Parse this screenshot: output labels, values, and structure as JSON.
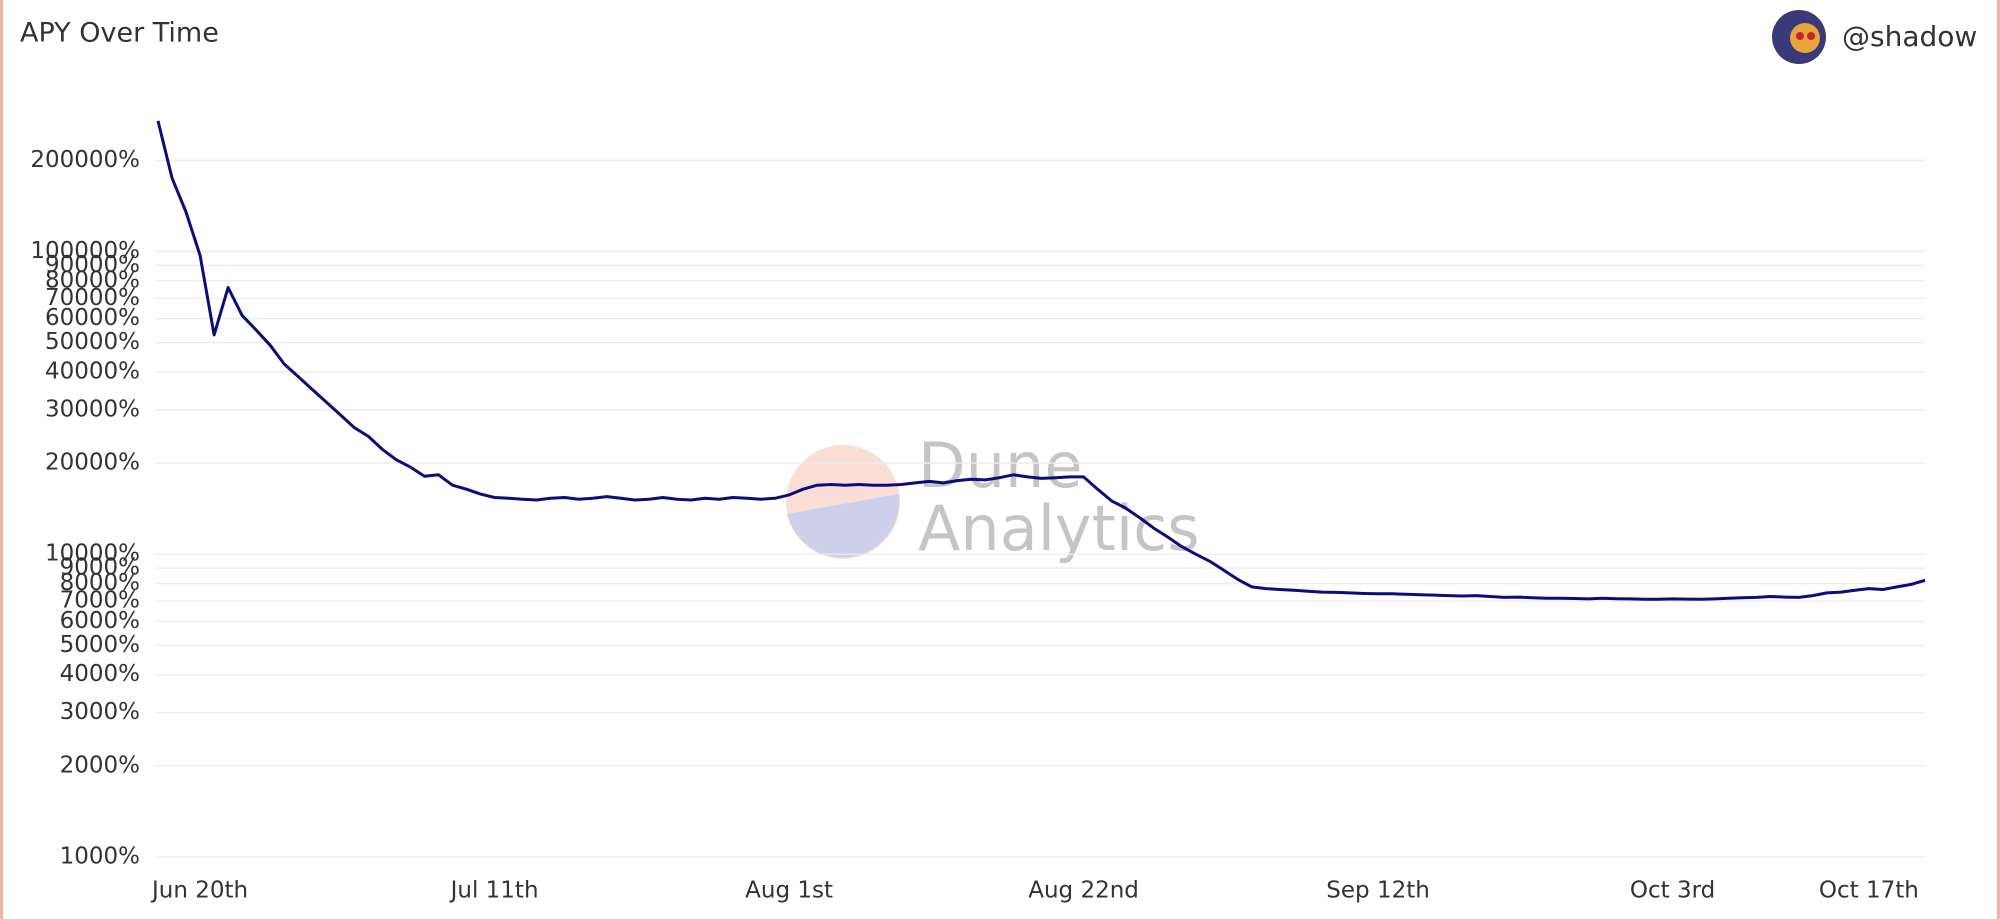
{
  "author": "@shadow",
  "watermark": [
    "Dune",
    "Analytics"
  ],
  "chart_data": {
    "type": "line",
    "title": "APY Over Time",
    "color": "#0d0d7a",
    "y_log_scale": true,
    "grid": true,
    "xlim": [
      "06-17",
      "10-21"
    ],
    "xticks": [
      {
        "value": "06-20",
        "label": "Jun 20th"
      },
      {
        "value": "07-11",
        "label": "Jul 11th"
      },
      {
        "value": "08-01",
        "label": "Aug 1st"
      },
      {
        "value": "08-22",
        "label": "Aug 22nd"
      },
      {
        "value": "09-12",
        "label": "Sep 12th"
      },
      {
        "value": "10-03",
        "label": "Oct 3rd"
      },
      {
        "value": "10-17",
        "label": "Oct 17th"
      }
    ],
    "ylim": [
      1000,
      300000
    ],
    "yticks": [
      {
        "value": 1000,
        "label": "1000%"
      },
      {
        "value": 2000,
        "label": "2000%"
      },
      {
        "value": 3000,
        "label": "3000%"
      },
      {
        "value": 4000,
        "label": "4000%"
      },
      {
        "value": 5000,
        "label": "5000%"
      },
      {
        "value": 6000,
        "label": "6000%"
      },
      {
        "value": 7000,
        "label": "7000%"
      },
      {
        "value": 8000,
        "label": "8000%"
      },
      {
        "value": 9000,
        "label": "9000%"
      },
      {
        "value": 10000,
        "label": "10000%"
      },
      {
        "value": 20000,
        "label": "20000%"
      },
      {
        "value": 30000,
        "label": "30000%"
      },
      {
        "value": 40000,
        "label": "40000%"
      },
      {
        "value": 50000,
        "label": "50000%"
      },
      {
        "value": 60000,
        "label": "60000%"
      },
      {
        "value": 70000,
        "label": "70000%"
      },
      {
        "value": 80000,
        "label": "80000%"
      },
      {
        "value": 90000,
        "label": "90000%"
      },
      {
        "value": 100000,
        "label": "100000%"
      },
      {
        "value": 200000,
        "label": "200000%"
      }
    ],
    "x": [
      "06-17",
      "06-18",
      "06-19",
      "06-20",
      "06-21",
      "06-22",
      "06-23",
      "06-24",
      "06-25",
      "06-26",
      "06-27",
      "06-28",
      "06-29",
      "06-30",
      "07-01",
      "07-02",
      "07-03",
      "07-04",
      "07-05",
      "07-06",
      "07-07",
      "07-08",
      "07-09",
      "07-10",
      "07-11",
      "07-12",
      "07-13",
      "07-14",
      "07-15",
      "07-16",
      "07-17",
      "07-18",
      "07-19",
      "07-20",
      "07-21",
      "07-22",
      "07-23",
      "07-24",
      "07-25",
      "07-26",
      "07-27",
      "07-28",
      "07-29",
      "07-30",
      "07-31",
      "08-01",
      "08-02",
      "08-03",
      "08-04",
      "08-05",
      "08-06",
      "08-07",
      "08-08",
      "08-09",
      "08-10",
      "08-11",
      "08-12",
      "08-13",
      "08-14",
      "08-15",
      "08-16",
      "08-17",
      "08-18",
      "08-19",
      "08-20",
      "08-21",
      "08-22",
      "08-23",
      "08-24",
      "08-25",
      "08-26",
      "08-27",
      "08-28",
      "08-29",
      "08-30",
      "08-31",
      "09-01",
      "09-02",
      "09-03",
      "09-04",
      "09-05",
      "09-06",
      "09-07",
      "09-08",
      "09-09",
      "09-10",
      "09-11",
      "09-12",
      "09-13",
      "09-14",
      "09-15",
      "09-16",
      "09-17",
      "09-18",
      "09-19",
      "09-20",
      "09-21",
      "09-22",
      "09-23",
      "09-24",
      "09-25",
      "09-26",
      "09-27",
      "09-28",
      "09-29",
      "09-30",
      "10-01",
      "10-02",
      "10-03",
      "10-04",
      "10-05",
      "10-06",
      "10-07",
      "10-08",
      "10-09",
      "10-10",
      "10-11",
      "10-12",
      "10-13",
      "10-14",
      "10-15",
      "10-16",
      "10-17",
      "10-18",
      "10-19",
      "10-20",
      "10-21"
    ],
    "values": [
      270000,
      175000,
      135000,
      97000,
      53000,
      76000,
      61500,
      55000,
      49000,
      42500,
      38600,
      35000,
      31800,
      28900,
      26200,
      24500,
      22200,
      20500,
      19400,
      18100,
      18300,
      16900,
      16400,
      15800,
      15400,
      15300,
      15200,
      15100,
      15300,
      15400,
      15200,
      15300,
      15500,
      15300,
      15100,
      15200,
      15400,
      15200,
      15100,
      15300,
      15200,
      15400,
      15300,
      15200,
      15300,
      15700,
      16400,
      16900,
      17000,
      16900,
      17000,
      16900,
      16900,
      17000,
      17200,
      17400,
      17200,
      17500,
      17700,
      17600,
      17900,
      18300,
      18000,
      17800,
      17900,
      18000,
      18000,
      16400,
      15000,
      14200,
      13200,
      12200,
      11400,
      10600,
      10000,
      9480,
      8850,
      8260,
      7800,
      7700,
      7650,
      7600,
      7550,
      7500,
      7480,
      7450,
      7420,
      7400,
      7400,
      7380,
      7350,
      7330,
      7300,
      7280,
      7300,
      7250,
      7200,
      7220,
      7180,
      7150,
      7160,
      7140,
      7120,
      7150,
      7130,
      7120,
      7100,
      7100,
      7120,
      7110,
      7100,
      7120,
      7150,
      7180,
      7200,
      7250,
      7220,
      7200,
      7300,
      7450,
      7500,
      7600,
      7700,
      7650,
      7800,
      7950,
      8200
    ]
  }
}
